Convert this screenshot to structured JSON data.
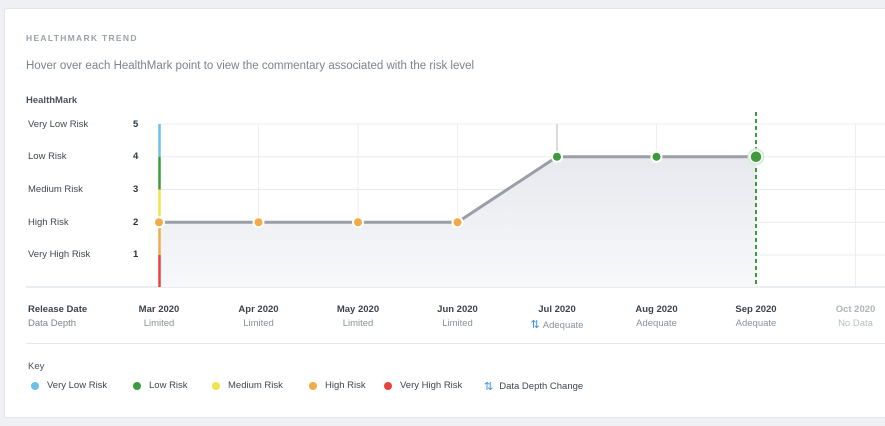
{
  "header": {
    "section_title": "HEALTHMARK TREND",
    "subtitle": "Hover over each HealthMark point to view the commentary associated with the risk level",
    "y_title": "HealthMark"
  },
  "risk_levels": [
    {
      "label": "Very Low Risk",
      "value": "5"
    },
    {
      "label": "Low Risk",
      "value": "4"
    },
    {
      "label": "Medium  Risk",
      "value": "3"
    },
    {
      "label": "High Risk",
      "value": "2"
    },
    {
      "label": "Very High Risk",
      "value": "1"
    }
  ],
  "x_axis": {
    "release_label": "Release Date",
    "depth_label": "Data Depth",
    "points": [
      {
        "date": "Mar 2020",
        "depth": "Limited",
        "change": false
      },
      {
        "date": "Apr 2020",
        "depth": "Limited",
        "change": false
      },
      {
        "date": "May 2020",
        "depth": "Limited",
        "change": false
      },
      {
        "date": "Jun 2020",
        "depth": "Limited",
        "change": false
      },
      {
        "date": "Jul 2020",
        "depth": "Adequate",
        "change": true
      },
      {
        "date": "Aug 2020",
        "depth": "Adequate",
        "change": false
      },
      {
        "date": "Sep 2020",
        "depth": "Adequate",
        "change": false
      },
      {
        "date": "Oct 2020",
        "depth": "No Data",
        "change": false
      }
    ]
  },
  "key": {
    "title": "Key",
    "items": [
      {
        "label": "Very Low Risk",
        "color": "#6cc1e8"
      },
      {
        "label": "Low Risk",
        "color": "#3f9a3d"
      },
      {
        "label": "Medium Risk",
        "color": "#f2e34a"
      },
      {
        "label": "High Risk",
        "color": "#f1ac48"
      },
      {
        "label": "Very High Risk",
        "color": "#e8423f"
      }
    ],
    "depth_change_label": "Data Depth Change",
    "depth_change_icon": "up-down-arrows-icon"
  },
  "colors": {
    "very_low": "#6cc1e8",
    "low": "#3f9a3d",
    "medium": "#f2e34a",
    "high": "#f1ac48",
    "very_high": "#e8423f",
    "line": "#9a9ea6",
    "selected": "#3f9a3d"
  },
  "chart_data": {
    "type": "line",
    "title": "HEALTHMARK TREND",
    "ylabel": "HealthMark",
    "xlabel": "Release Date",
    "categories": [
      "Mar 2020",
      "Apr 2020",
      "May 2020",
      "Jun 2020",
      "Jul 2020",
      "Aug 2020",
      "Sep 2020",
      "Oct 2020"
    ],
    "series": [
      {
        "values": [
          2,
          2,
          2,
          2,
          4,
          4,
          4,
          null
        ]
      }
    ],
    "ylim": [
      0.5,
      5.5
    ],
    "yticks": [
      1,
      2,
      3,
      4,
      5
    ],
    "selected_category": "Sep 2020",
    "area_fill": true,
    "grid": true
  }
}
